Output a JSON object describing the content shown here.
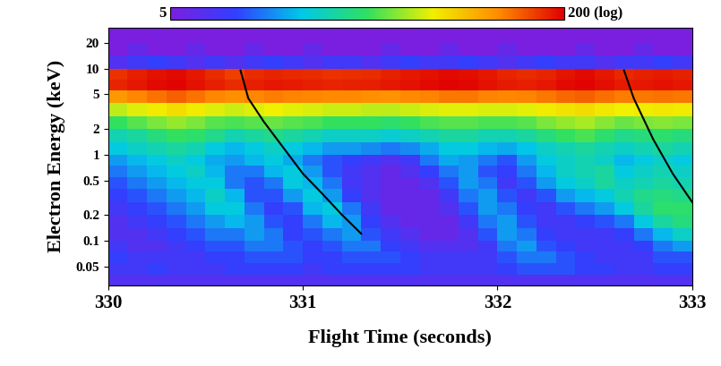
{
  "chart_data": {
    "type": "heatmap",
    "x_label": "Flight Time (seconds)",
    "y_label": "Electron Energy (keV)",
    "log": "y",
    "xlim": [
      330,
      333
    ],
    "ylim": [
      0.03,
      30
    ],
    "xticks": [
      330,
      331,
      332,
      333
    ],
    "yticks": [
      0.05,
      0.1,
      0.2,
      0.5,
      1,
      2,
      5,
      10,
      20
    ],
    "x_edges": [
      330.0,
      330.1,
      330.2,
      330.3,
      330.4,
      330.5,
      330.6,
      330.7,
      330.8,
      330.9,
      331.0,
      331.1,
      331.2,
      331.3,
      331.4,
      331.5,
      331.6,
      331.7,
      331.8,
      331.9,
      332.0,
      332.1,
      332.2,
      332.3,
      332.4,
      332.5,
      332.6,
      332.7,
      332.8,
      332.9,
      333.0
    ],
    "y_edges": [
      0.03,
      0.04,
      0.055,
      0.075,
      0.1,
      0.14,
      0.2,
      0.28,
      0.4,
      0.55,
      0.75,
      1.0,
      1.4,
      2.0,
      2.8,
      4.0,
      5.5,
      7.5,
      10,
      14,
      20,
      30
    ],
    "cells": [
      [
        7,
        7,
        7,
        7,
        7,
        7,
        7,
        7,
        7,
        7,
        7,
        7,
        7,
        7,
        7,
        7,
        7,
        7,
        7,
        7,
        7,
        7,
        7,
        7,
        7,
        7,
        7,
        7,
        7,
        7
      ],
      [
        8,
        8,
        9,
        8,
        8,
        8,
        9,
        9,
        9,
        9,
        8,
        9,
        9,
        9,
        9,
        9,
        8,
        8,
        8,
        8,
        9,
        10,
        10,
        10,
        9,
        9,
        8,
        8,
        9,
        9
      ],
      [
        9,
        8,
        8,
        8,
        8,
        9,
        9,
        10,
        10,
        10,
        9,
        9,
        10,
        10,
        10,
        9,
        8,
        8,
        8,
        8,
        10,
        12,
        12,
        10,
        9,
        8,
        8,
        8,
        10,
        10
      ],
      [
        8,
        7,
        7,
        8,
        9,
        10,
        10,
        12,
        12,
        10,
        9,
        10,
        12,
        12,
        9,
        8,
        7,
        7,
        7,
        8,
        12,
        14,
        10,
        9,
        8,
        8,
        8,
        9,
        12,
        14
      ],
      [
        7,
        7,
        8,
        9,
        10,
        12,
        12,
        14,
        12,
        9,
        10,
        12,
        14,
        10,
        8,
        7,
        6,
        6,
        7,
        10,
        14,
        12,
        9,
        8,
        8,
        8,
        9,
        12,
        16,
        20
      ],
      [
        7,
        8,
        9,
        10,
        12,
        14,
        16,
        14,
        10,
        9,
        12,
        16,
        14,
        9,
        7,
        6,
        6,
        6,
        8,
        12,
        14,
        10,
        8,
        8,
        9,
        10,
        12,
        18,
        24,
        28
      ],
      [
        8,
        9,
        10,
        12,
        14,
        18,
        18,
        12,
        9,
        10,
        16,
        18,
        12,
        8,
        6,
        6,
        6,
        7,
        10,
        14,
        12,
        9,
        8,
        10,
        12,
        14,
        18,
        24,
        30,
        30
      ],
      [
        9,
        10,
        12,
        14,
        16,
        20,
        16,
        10,
        10,
        14,
        18,
        14,
        9,
        7,
        6,
        6,
        6,
        8,
        12,
        14,
        10,
        8,
        10,
        14,
        16,
        18,
        22,
        26,
        28,
        26
      ],
      [
        10,
        12,
        14,
        16,
        18,
        18,
        12,
        10,
        12,
        18,
        16,
        12,
        8,
        7,
        6,
        6,
        7,
        10,
        14,
        12,
        8,
        10,
        14,
        18,
        20,
        24,
        20,
        22,
        24,
        22
      ],
      [
        12,
        14,
        16,
        18,
        20,
        16,
        12,
        12,
        16,
        18,
        14,
        10,
        8,
        7,
        6,
        7,
        9,
        12,
        14,
        10,
        9,
        12,
        16,
        20,
        22,
        24,
        18,
        20,
        22,
        20
      ],
      [
        14,
        16,
        18,
        20,
        18,
        15,
        14,
        16,
        18,
        15,
        12,
        10,
        9,
        8,
        7,
        8,
        12,
        15,
        14,
        12,
        10,
        14,
        18,
        20,
        22,
        20,
        16,
        18,
        20,
        18
      ],
      [
        18,
        20,
        22,
        24,
        22,
        18,
        16,
        18,
        20,
        18,
        16,
        14,
        14,
        13,
        12,
        13,
        15,
        18,
        18,
        16,
        15,
        17,
        20,
        22,
        24,
        22,
        20,
        22,
        24,
        22
      ],
      [
        22,
        24,
        28,
        32,
        30,
        26,
        22,
        24,
        26,
        24,
        22,
        20,
        20,
        20,
        19,
        20,
        22,
        24,
        24,
        22,
        22,
        24,
        28,
        32,
        34,
        30,
        26,
        28,
        30,
        28
      ],
      [
        32,
        36,
        40,
        44,
        40,
        36,
        34,
        36,
        38,
        36,
        34,
        32,
        32,
        32,
        30,
        32,
        34,
        36,
        36,
        34,
        34,
        36,
        40,
        44,
        46,
        42,
        38,
        40,
        42,
        40
      ],
      [
        50,
        55,
        60,
        65,
        60,
        55,
        52,
        55,
        58,
        56,
        54,
        52,
        52,
        50,
        50,
        52,
        54,
        56,
        56,
        54,
        54,
        56,
        60,
        64,
        66,
        62,
        58,
        60,
        62,
        60
      ],
      [
        100,
        110,
        120,
        130,
        120,
        110,
        105,
        110,
        115,
        112,
        110,
        108,
        108,
        105,
        104,
        108,
        112,
        118,
        118,
        112,
        110,
        112,
        118,
        125,
        130,
        122,
        115,
        118,
        120,
        118
      ],
      [
        170,
        180,
        190,
        195,
        185,
        175,
        165,
        175,
        180,
        178,
        175,
        170,
        172,
        175,
        180,
        185,
        190,
        195,
        192,
        185,
        178,
        175,
        180,
        190,
        195,
        188,
        178,
        180,
        185,
        180
      ],
      [
        160,
        175,
        185,
        190,
        180,
        165,
        150,
        165,
        170,
        168,
        165,
        160,
        162,
        165,
        172,
        180,
        185,
        190,
        188,
        180,
        170,
        165,
        170,
        182,
        190,
        180,
        168,
        172,
        178,
        172
      ],
      [
        7,
        8,
        9,
        8,
        7,
        8,
        7,
        8,
        9,
        8,
        7,
        8,
        8,
        7,
        8,
        9,
        8,
        8,
        9,
        8,
        7,
        8,
        9,
        8,
        8,
        7,
        8,
        8,
        9,
        8
      ],
      [
        5,
        6,
        5,
        5,
        6,
        5,
        5,
        6,
        5,
        5,
        6,
        5,
        5,
        5,
        6,
        5,
        5,
        6,
        5,
        5,
        6,
        5,
        5,
        5,
        6,
        5,
        5,
        6,
        5,
        5
      ],
      [
        5,
        5,
        5,
        5,
        5,
        5,
        5,
        5,
        5,
        5,
        5,
        5,
        5,
        5,
        5,
        5,
        5,
        5,
        5,
        5,
        5,
        5,
        5,
        5,
        5,
        5,
        5,
        5,
        5,
        5
      ]
    ],
    "colorbar": {
      "range": [
        5,
        200
      ],
      "ticks": [
        {
          "value": 5,
          "label": "5"
        },
        {
          "value": 200,
          "label": "200 (log)"
        }
      ]
    },
    "lines": [
      {
        "color": "black",
        "x": [
          330.68,
          330.72,
          330.8,
          330.9,
          331.0,
          331.1,
          331.2,
          331.3
        ],
        "y": [
          9.5,
          4.5,
          2.4,
          1.2,
          0.6,
          0.35,
          0.2,
          0.12
        ]
      },
      {
        "color": "black",
        "x": [
          332.65,
          332.7,
          332.8,
          332.9,
          333.0
        ],
        "y": [
          9.5,
          4.5,
          1.5,
          0.6,
          0.28
        ]
      }
    ]
  }
}
